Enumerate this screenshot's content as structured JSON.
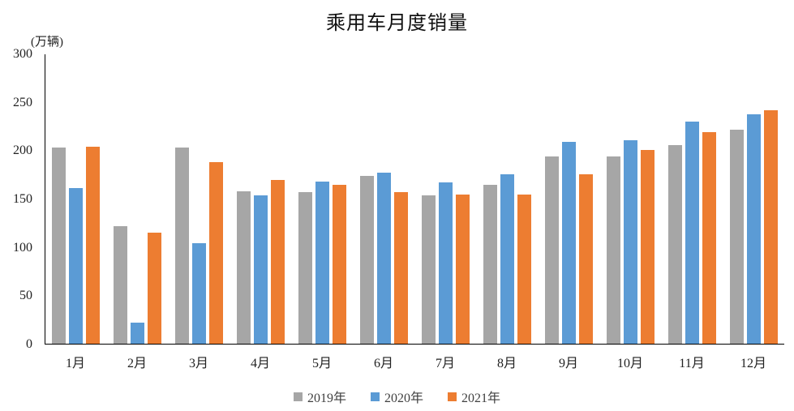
{
  "title": "乘用车月度销量",
  "chart_data": {
    "type": "bar",
    "title": "乘用车月度销量",
    "unit_label": "(万辆)",
    "xlabel": "",
    "ylabel": "(万辆)",
    "categories": [
      "1月",
      "2月",
      "3月",
      "4月",
      "5月",
      "6月",
      "7月",
      "8月",
      "9月",
      "10月",
      "11月",
      "12月"
    ],
    "series": [
      {
        "name": "2019年",
        "color": "#A6A6A6",
        "values": [
          203,
          122,
          203,
          158,
          157,
          174,
          154,
          165,
          194,
          194,
          206,
          222
        ]
      },
      {
        "name": "2020年",
        "color": "#5B9BD5",
        "values": [
          161,
          22,
          104,
          154,
          168,
          177,
          167,
          176,
          209,
          211,
          230,
          238
        ]
      },
      {
        "name": "2021年",
        "color": "#ED7D31",
        "values": [
          204,
          115,
          188,
          170,
          165,
          157,
          155,
          155,
          176,
          201,
          219,
          242
        ]
      }
    ],
    "ylim": [
      0,
      300
    ],
    "yticks": [
      0,
      50,
      100,
      150,
      200,
      250,
      300
    ],
    "grid": false,
    "legend_position": "bottom",
    "axis_color": "#000000"
  }
}
